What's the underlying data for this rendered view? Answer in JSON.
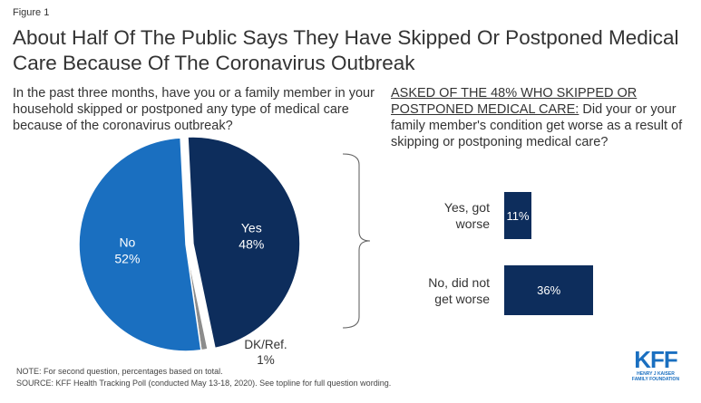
{
  "figure_label": "Figure 1",
  "title": "About Half Of The Public Says They Have Skipped Or Postponed Medical Care Because Of The Coronavirus Outbreak",
  "left_question": "In the past three months, have you or a family member in your household skipped or postponed any type of medical care because of the coronavirus outbreak?",
  "right_question": {
    "underlined": "ASKED OF THE 48% WHO SKIPPED OR POSTPONED MEDICAL CARE:",
    "text": " Did your or your family member's condition get worse as a result of skipping or postponing medical care?"
  },
  "colors": {
    "no": "#1a6fc0",
    "yes": "#0d2d5c",
    "dk": "#8c8c8c",
    "bar": "#0d2d5c",
    "logo": "#1a6fc0"
  },
  "chart_data": [
    {
      "type": "pie",
      "slices": [
        {
          "label": "Yes",
          "value": 48,
          "value_label": "48%"
        },
        {
          "label": "DK/Ref.",
          "value": 1,
          "value_label": "1%"
        },
        {
          "label": "No",
          "value": 52,
          "value_label": "52%"
        }
      ]
    },
    {
      "type": "bar",
      "orientation": "horizontal",
      "categories": [
        "Yes, got worse",
        "No, did not get worse"
      ],
      "values": [
        11,
        36
      ],
      "value_labels": [
        "11%",
        "36%"
      ]
    }
  ],
  "notes": {
    "note": "NOTE: For second question, percentages based on total.",
    "source": "SOURCE: KFF Health Tracking Poll (conducted May 13-18, 2020). See topline for full question wording."
  },
  "logo": {
    "mark": "KFF",
    "sub1": "HENRY J KAISER",
    "sub2": "FAMILY FOUNDATION"
  }
}
